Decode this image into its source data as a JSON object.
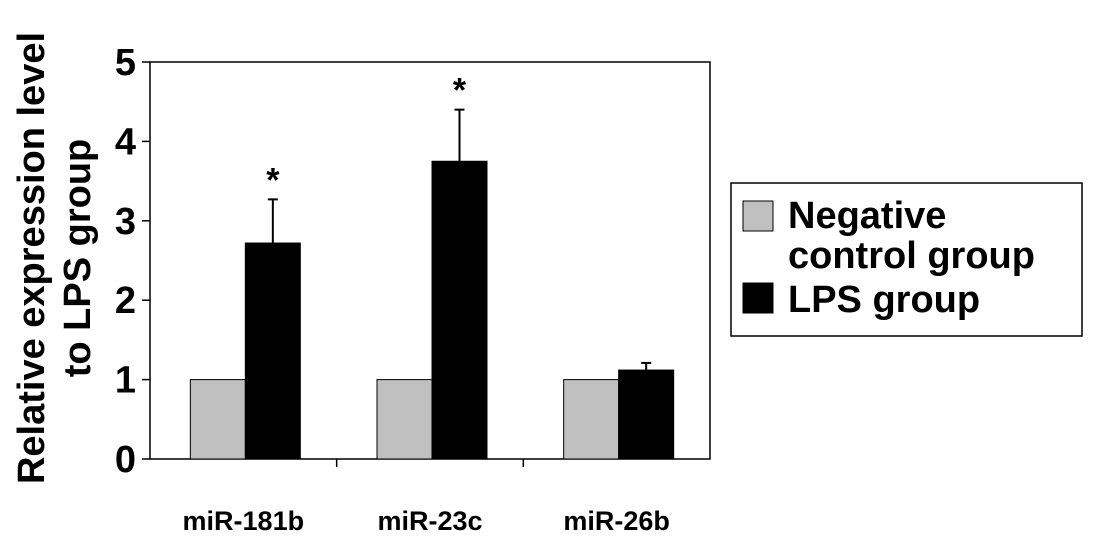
{
  "chart_data": {
    "type": "bar",
    "ylabel_line1": "Relative expression level",
    "ylabel_line2": "to LPS group",
    "xlabel": "",
    "ylim": [
      0,
      5
    ],
    "yticks": [
      "0",
      "1",
      "2",
      "3",
      "4",
      "5"
    ],
    "categories": [
      "miR-181b",
      "miR-23c",
      "miR-26b"
    ],
    "series": [
      {
        "name": "Negative control group",
        "legend_line1": "Negative",
        "legend_line2": "control group",
        "color": "#c0c0c0",
        "values": [
          1.0,
          1.0,
          1.0
        ],
        "errors": [
          0,
          0,
          0
        ]
      },
      {
        "name": "LPS group",
        "color": "#000000",
        "values": [
          2.72,
          3.75,
          1.12
        ],
        "errors": [
          0.55,
          0.65,
          0.09
        ]
      }
    ],
    "annotations": [
      "*",
      "*",
      ""
    ],
    "legend_position": "right",
    "grid": false
  }
}
